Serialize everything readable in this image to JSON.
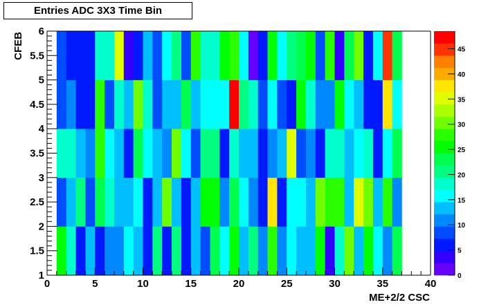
{
  "chart_data": {
    "type": "heatmap",
    "title": "Entries ADC 3X3 Time Bin",
    "xlabel": "ME+2/2 CSC",
    "ylabel": "CFEB",
    "xlim": [
      0,
      40
    ],
    "ylim": [
      1,
      6
    ],
    "zlim": [
      0,
      48.5
    ],
    "x_bin_edges_start": 1,
    "x_bin_width": 1,
    "y_bin_edges_start": 1,
    "y_bin_width": 1,
    "x_tick_labels": [
      "0",
      "5",
      "10",
      "15",
      "20",
      "25",
      "30",
      "35",
      "40"
    ],
    "y_tick_labels": [
      "1",
      "1.5",
      "2",
      "2.5",
      "3",
      "3.5",
      "4",
      "4.5",
      "5",
      "5.5",
      "6"
    ],
    "z_tick_labels": [
      "0",
      "5",
      "10",
      "15",
      "20",
      "25",
      "30",
      "35",
      "40",
      "45"
    ],
    "palette": [
      "#6600ff",
      "#3300ff",
      "#0019ff",
      "#004cff",
      "#0088ff",
      "#00bfff",
      "#00ffff",
      "#00ffcc",
      "#00ff80",
      "#00ff4c",
      "#00ff00",
      "#2aff00",
      "#70ff00",
      "#aaff00",
      "#dfff00",
      "#ffe600",
      "#ffaa00",
      "#ff7f00",
      "#ff3300",
      "#ff0000"
    ],
    "values": [
      [
        25,
        18,
        6,
        13,
        6,
        11,
        11,
        16,
        13,
        6,
        21,
        6,
        21,
        6,
        13,
        8,
        23,
        16,
        25,
        13,
        21,
        11,
        28,
        11,
        16,
        13,
        13,
        25,
        4,
        18,
        30,
        13,
        25,
        16,
        11,
        23
      ],
      [
        8,
        13,
        21,
        8,
        23,
        18,
        13,
        13,
        16,
        6,
        13,
        30,
        13,
        6,
        13,
        25,
        25,
        11,
        23,
        16,
        11,
        6,
        38,
        6,
        16,
        16,
        13,
        30,
        28,
        28,
        13,
        35,
        30,
        13,
        28,
        11
      ],
      [
        18,
        18,
        13,
        11,
        28,
        16,
        13,
        6,
        23,
        16,
        13,
        11,
        30,
        16,
        8,
        21,
        21,
        6,
        18,
        13,
        13,
        6,
        11,
        13,
        35,
        8,
        11,
        6,
        18,
        18,
        13,
        16,
        18,
        6,
        16,
        23
      ],
      [
        8,
        11,
        6,
        6,
        28,
        8,
        18,
        13,
        30,
        18,
        8,
        13,
        13,
        23,
        13,
        16,
        16,
        16,
        47,
        21,
        18,
        8,
        16,
        8,
        6,
        25,
        18,
        11,
        11,
        25,
        16,
        13,
        6,
        6,
        38,
        16
      ],
      [
        8,
        6,
        6,
        6,
        18,
        18,
        35,
        4,
        6,
        13,
        8,
        16,
        21,
        8,
        28,
        18,
        18,
        25,
        28,
        16,
        1,
        6,
        25,
        16,
        21,
        23,
        25,
        8,
        28,
        4,
        23,
        30,
        6,
        16,
        45,
        23
      ]
    ]
  }
}
